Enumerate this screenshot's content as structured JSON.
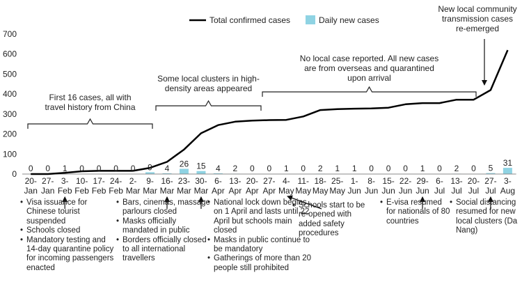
{
  "chart_data": {
    "type": "bar",
    "grid": false,
    "legend_position": "top",
    "ylim": [
      0,
      700
    ],
    "yticks": [
      0,
      100,
      200,
      300,
      400,
      500,
      600,
      700
    ],
    "categories": [
      [
        "20-",
        "Jan"
      ],
      [
        "27-",
        "Jan"
      ],
      [
        "3-",
        "Feb"
      ],
      [
        "10-",
        "Feb"
      ],
      [
        "17-",
        "Feb"
      ],
      [
        "24-",
        "Feb"
      ],
      [
        "2-",
        "Mar"
      ],
      [
        "9-",
        "Mar"
      ],
      [
        "16-",
        "Mar"
      ],
      [
        "23-",
        "Mar"
      ],
      [
        "30-",
        "Mar"
      ],
      [
        "6-",
        "Apr"
      ],
      [
        "13-",
        "Apr"
      ],
      [
        "20-",
        "Apr"
      ],
      [
        "27-",
        "Apr"
      ],
      [
        "4-",
        "May"
      ],
      [
        "11-",
        "May"
      ],
      [
        "18-",
        "May"
      ],
      [
        "25-",
        "May"
      ],
      [
        "1-",
        "Jun"
      ],
      [
        "8-",
        "Jun"
      ],
      [
        "15-",
        "Jun"
      ],
      [
        "22-",
        "Jun"
      ],
      [
        "29-",
        "Jun"
      ],
      [
        "6-",
        "Jul"
      ],
      [
        "13-",
        "Jul"
      ],
      [
        "20-",
        "Jul"
      ],
      [
        "27-",
        "Jul"
      ],
      [
        "3-",
        "Aug"
      ]
    ],
    "series": [
      {
        "name": "Total confirmed cases",
        "kind": "line",
        "color": "#000000",
        "values": [
          0,
          0,
          6,
          14,
          16,
          16,
          16,
          31,
          61,
          123,
          204,
          245,
          262,
          267,
          270,
          271,
          288,
          320,
          325,
          327,
          328,
          332,
          349,
          355,
          355,
          372,
          372,
          420,
          620
        ]
      },
      {
        "name": "Daily new cases",
        "kind": "bar",
        "color": "#8fd3e3",
        "values": [
          0,
          0,
          1,
          0,
          0,
          0,
          0,
          9,
          4,
          26,
          15,
          4,
          2,
          0,
          0,
          1,
          0,
          2,
          1,
          1,
          0,
          0,
          0,
          1,
          0,
          2,
          0,
          5,
          31
        ]
      }
    ],
    "bar_labels": [
      "0",
      "0",
      "1",
      "0",
      "0",
      "0",
      "0",
      "9",
      "4",
      "26",
      "15",
      "4",
      "2",
      "0",
      "0",
      "1",
      "0",
      "2",
      "1",
      "1",
      "0",
      "0",
      "0",
      "1",
      "0",
      "2",
      "0",
      "5",
      "31"
    ],
    "annotations": [
      {
        "text": [
          "First 16 cases, all with",
          "travel history from China"
        ],
        "from": 0,
        "to": 7
      },
      {
        "text": [
          "Some local clusters in high-",
          "density areas appeared"
        ],
        "from": 8,
        "to": 13
      },
      {
        "text": [
          "No local case reported. All new cases",
          "are from overseas and quarantined",
          "upon arrival"
        ],
        "from": 14,
        "to": 26
      },
      {
        "text": [
          "New local community",
          "transmission cases",
          "re-emerged"
        ],
        "point": 27
      }
    ],
    "events": [
      {
        "arrow_at": 2,
        "items": [
          "Visa issuance for Chinese tourist suspended",
          "Schools closed",
          "Mandatory testing and 14-day quarantine policy for incoming passengers enacted"
        ]
      },
      {
        "arrow_at": 8,
        "items": [
          "Bars, cinemas, massage parlours closed",
          "Masks officially mandated in public",
          "Borders officially closed to all international travellers"
        ]
      },
      {
        "arrow_at": 10,
        "items": [
          "National lock down begins on 1 April and lasts until 22 April but schools main closed",
          "Masks in public continue to be mandatory",
          "Gatherings of more than 20 people still prohibited"
        ]
      },
      {
        "arrow_at": 15,
        "items": [
          "Schools start to be re-opened with added safety procedures"
        ]
      },
      {
        "arrow_at": 23,
        "items": [
          "E-visa resumed for nationals of 80 countries"
        ]
      },
      {
        "arrow_at": 27,
        "items": [
          "Social distancing resumed for new local clusters (Da Nang)"
        ]
      }
    ]
  }
}
